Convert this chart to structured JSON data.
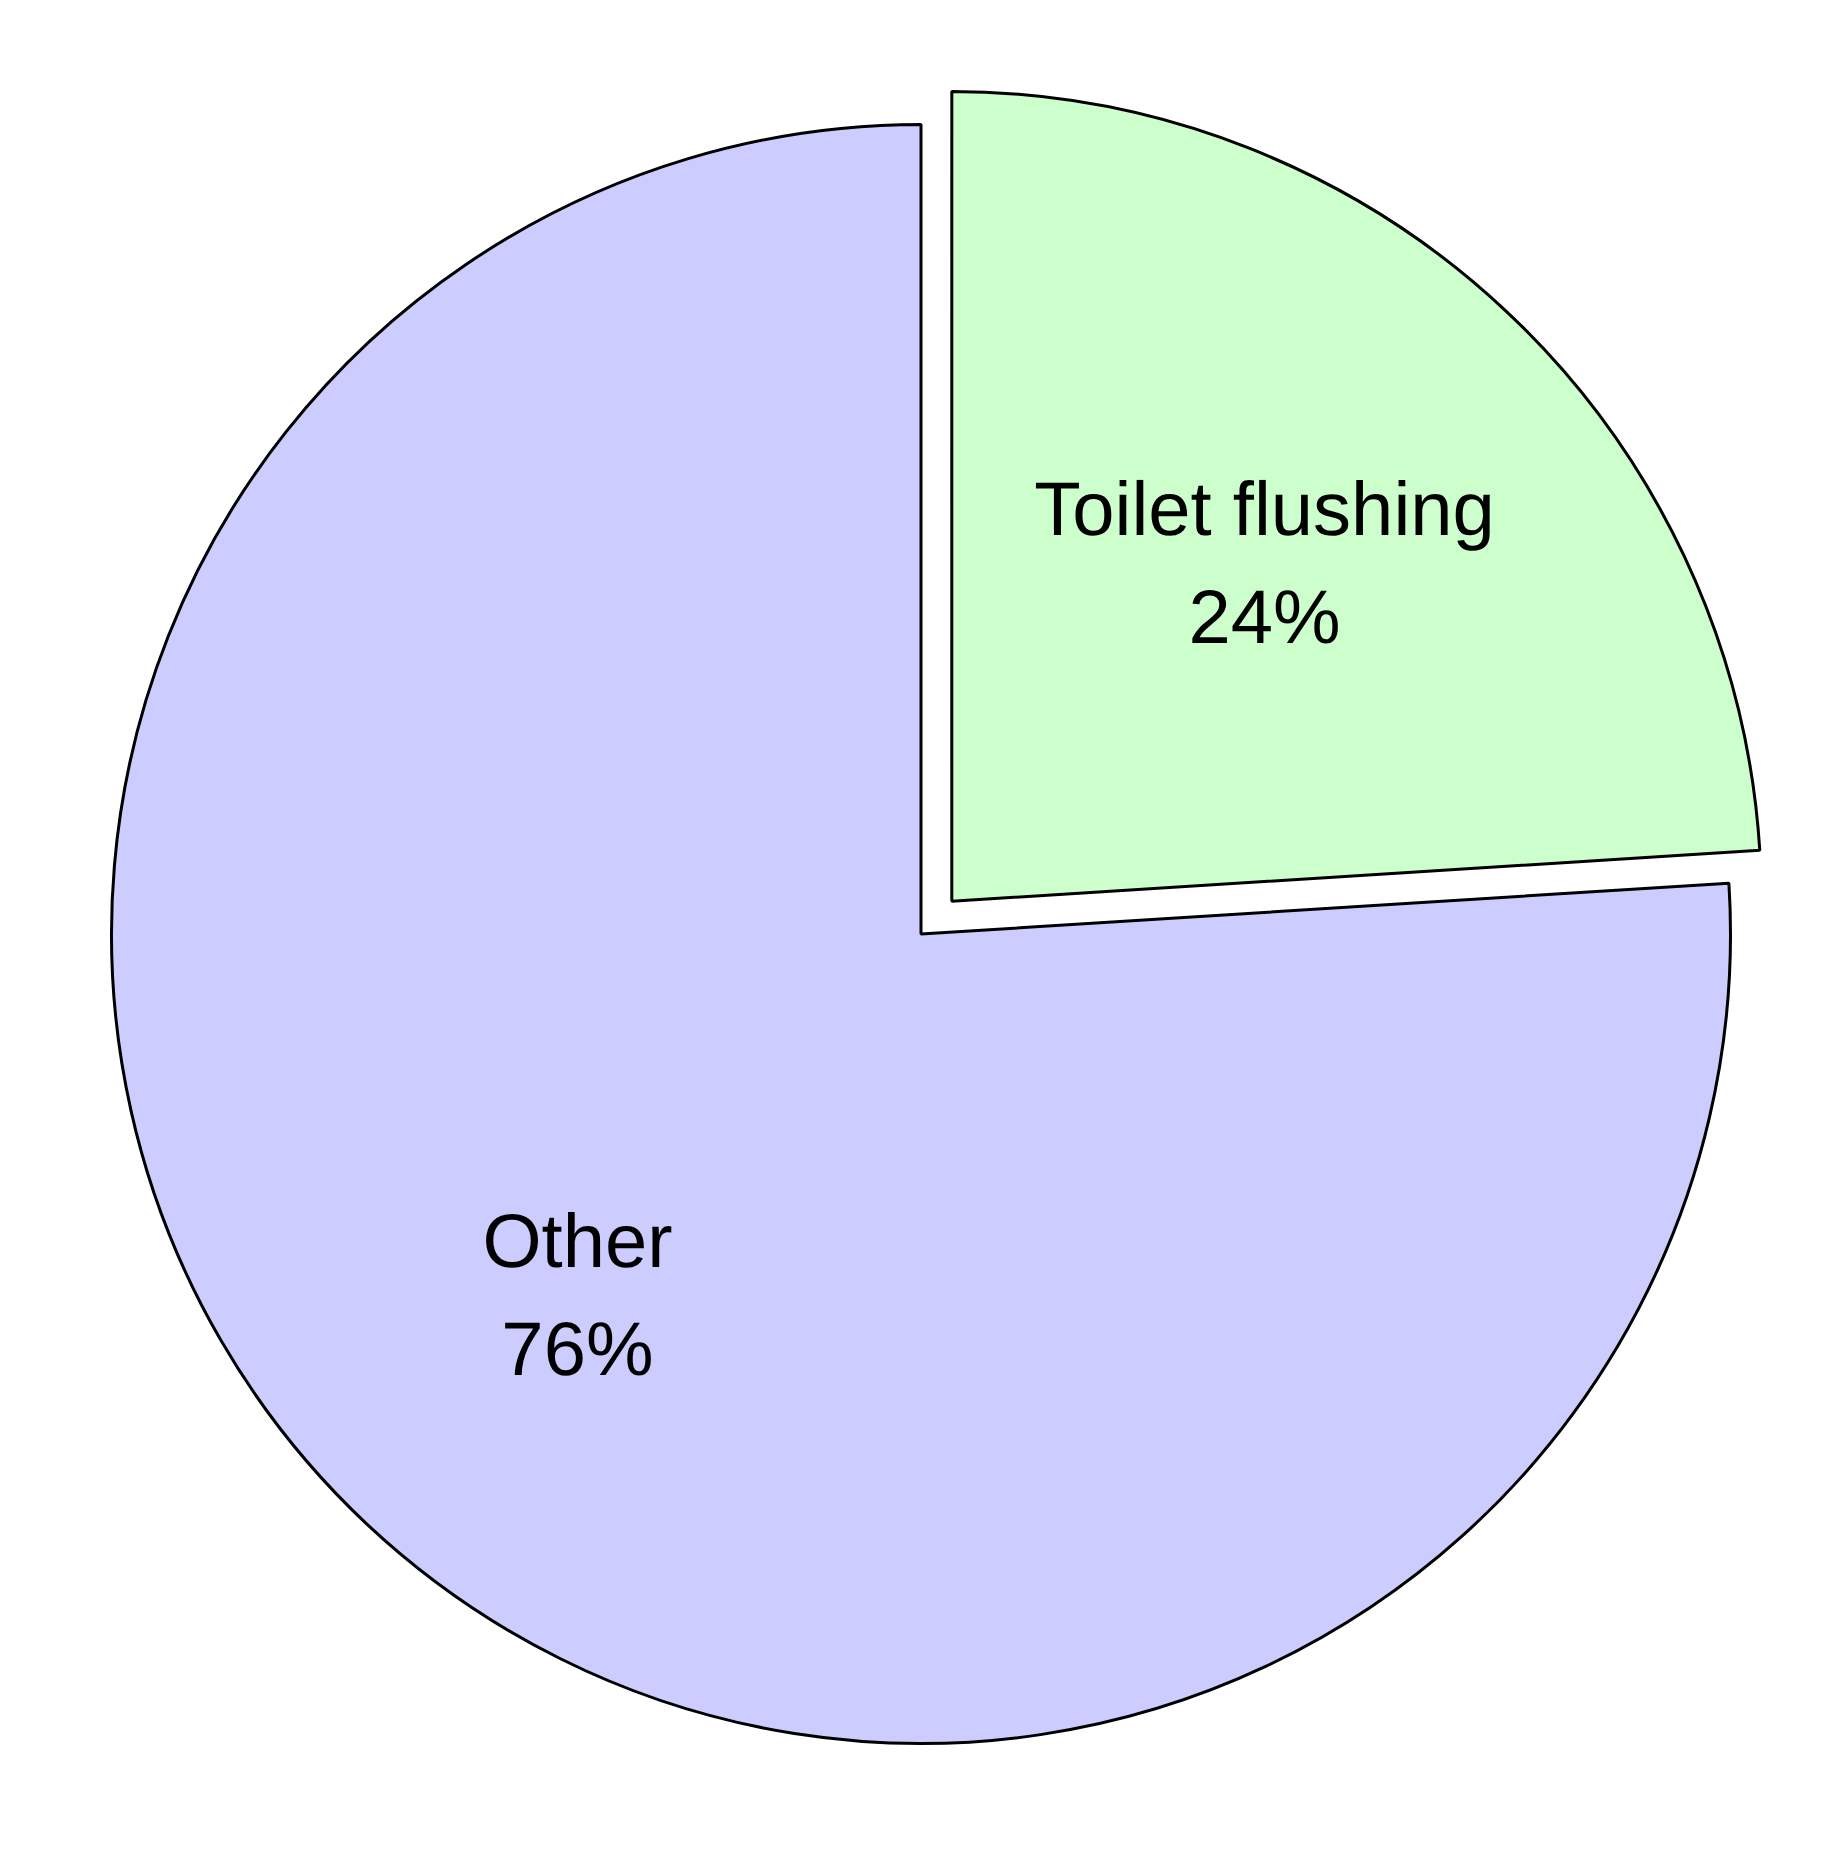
{
  "chart_data": {
    "type": "pie",
    "categories": [
      "Toilet flushing",
      "Other"
    ],
    "values": [
      24,
      76
    ],
    "value_labels": [
      "24%",
      "76%"
    ],
    "colors": [
      "#ccffcc",
      "#ccccff"
    ],
    "legend": false
  }
}
